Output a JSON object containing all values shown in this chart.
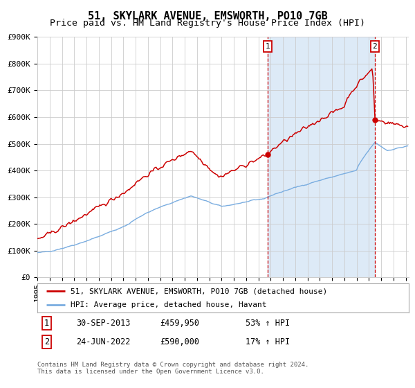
{
  "title": "51, SKYLARK AVENUE, EMSWORTH, PO10 7GB",
  "subtitle": "Price paid vs. HM Land Registry's House Price Index (HPI)",
  "ylim": [
    0,
    900000
  ],
  "yticks": [
    0,
    100000,
    200000,
    300000,
    400000,
    500000,
    600000,
    700000,
    800000,
    900000
  ],
  "ytick_labels": [
    "£0",
    "£100K",
    "£200K",
    "£300K",
    "£400K",
    "£500K",
    "£600K",
    "£700K",
    "£800K",
    "£900K"
  ],
  "red_line_color": "#cc0000",
  "blue_line_color": "#7aade0",
  "shade_color": "#ddeaf7",
  "grid_color": "#cccccc",
  "annotation1_price": 459950,
  "annotation2_price": 590000,
  "legend1": "51, SKYLARK AVENUE, EMSWORTH, PO10 7GB (detached house)",
  "legend2": "HPI: Average price, detached house, Havant",
  "table_row1": [
    "1",
    "30-SEP-2013",
    "£459,950",
    "53% ↑ HPI"
  ],
  "table_row2": [
    "2",
    "24-JUN-2022",
    "£590,000",
    "17% ↑ HPI"
  ],
  "footnote": "Contains HM Land Registry data © Crown copyright and database right 2024.\nThis data is licensed under the Open Government Licence v3.0.",
  "title_fontsize": 11,
  "subtitle_fontsize": 9.5,
  "tick_fontsize": 8,
  "legend_fontsize": 8,
  "table_fontsize": 8.5,
  "footnote_fontsize": 6.5
}
